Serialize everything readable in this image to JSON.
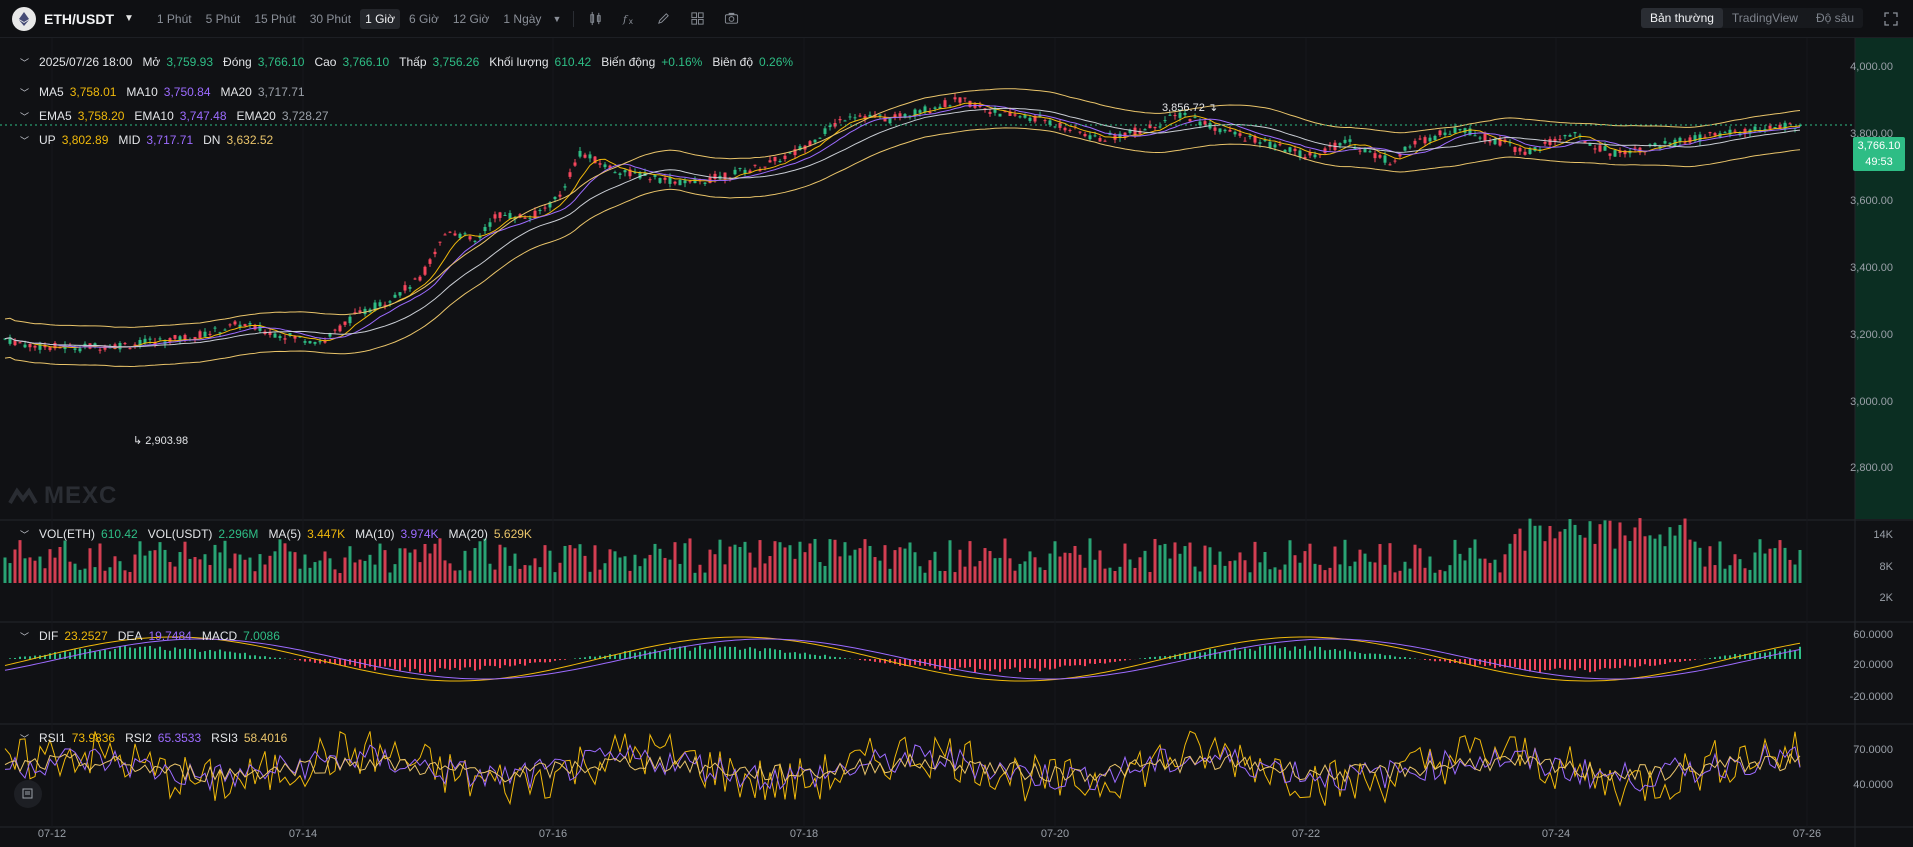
{
  "toolbar": {
    "pair": "ETH/USDT",
    "timeframes": [
      "1 Phút",
      "5 Phút",
      "15 Phút",
      "30 Phút",
      "1 Giờ",
      "6 Giờ",
      "12 Giờ",
      "1 Ngày"
    ],
    "active_timeframe": "1 Giờ",
    "views": [
      "Bản thường",
      "TradingView",
      "Độ sâu"
    ],
    "active_view": "Bản thường"
  },
  "ohlc": {
    "date": "2025/07/26 18:00",
    "open_label": "Mở",
    "open": "3,759.93",
    "close_label": "Đóng",
    "close": "3,766.10",
    "high_label": "Cao",
    "high": "3,766.10",
    "low_label": "Thấp",
    "low": "3,756.26",
    "volume_label": "Khối lượng",
    "volume": "610.42",
    "change_label": "Biến động",
    "change": "+0.16%",
    "amplitude_label": "Biên độ",
    "amplitude": "0.26%"
  },
  "ma": {
    "ma5_label": "MA5",
    "ma5": "3,758.01",
    "ma10_label": "MA10",
    "ma10": "3,750.84",
    "ma20_label": "MA20",
    "ma20": "3,717.71"
  },
  "ema": {
    "ema5_label": "EMA5",
    "ema5": "3,758.20",
    "ema10_label": "EMA10",
    "ema10": "3,747.48",
    "ema20_label": "EMA20",
    "ema20": "3,728.27"
  },
  "boll": {
    "up_label": "UP",
    "up": "3,802.89",
    "mid_label": "MID",
    "mid": "3,717.71",
    "dn_label": "DN",
    "dn": "3,632.52"
  },
  "vol": {
    "eth_label": "VOL(ETH)",
    "eth": "610.42",
    "usdt_label": "VOL(USDT)",
    "usdt": "2.296M",
    "ma5_label": "MA(5)",
    "ma5": "3.447K",
    "ma10_label": "MA(10)",
    "ma10": "3.974K",
    "ma20_label": "MA(20)",
    "ma20": "5.629K"
  },
  "macd": {
    "dif_label": "DIF",
    "dif": "23.2527",
    "dea_label": "DEA",
    "dea": "19.7484",
    "macd_label": "MACD",
    "macd": "7.0086"
  },
  "rsi": {
    "rsi1_label": "RSI1",
    "rsi1": "73.9836",
    "rsi2_label": "RSI2",
    "rsi2": "65.3533",
    "rsi3_label": "RSI3",
    "rsi3": "58.4016"
  },
  "price_axis": [
    "4,000.00",
    "3,800.00",
    "3,600.00",
    "3,400.00",
    "3,200.00",
    "3,000.00",
    "2,800.00"
  ],
  "vol_axis": [
    "14K",
    "8K",
    "2K"
  ],
  "macd_axis": [
    "60.0000",
    "20.0000",
    "-20.0000"
  ],
  "rsi_axis": [
    "70.0000",
    "40.0000"
  ],
  "x_axis": [
    "07-12",
    "07-14",
    "07-16",
    "07-18",
    "07-20",
    "07-22",
    "07-24",
    "07-26"
  ],
  "last_price": "3,766.10",
  "countdown": "49:53",
  "high_marker": "3,856.72",
  "low_marker": "2,903.98",
  "watermark": "MEXC",
  "colors": {
    "up": "#2ebd85",
    "down": "#f6465d",
    "ma5": "#f0b90b",
    "ma10": "#9c6bff",
    "ma20": "#c9cdd4"
  }
}
